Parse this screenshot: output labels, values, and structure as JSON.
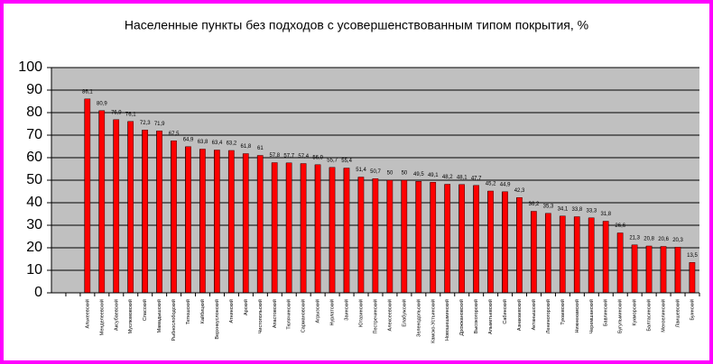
{
  "chart_data": {
    "type": "bar",
    "title": "Населенные пункты без подходов с усовершенствованным типом покрытия, %",
    "categories": [
      null,
      null,
      "Алькеевский",
      "Менделеевский",
      "Аксубаевский",
      "Муслюмовский",
      "Спасский",
      "Мамадышский",
      "Рыбнослободский",
      "Тетюшский",
      "Кайбицкий",
      "Верхнеуслонский",
      "Атнинский",
      "Арский",
      "Чистопольский",
      "Апастовский",
      "Тюлячинский",
      "Сармановский",
      "Агрызский",
      "Нурлатский",
      "Заинский",
      "Ютазинский",
      "Пестречинский",
      "Алексеевский",
      "Елабужский",
      "Зеленодольский",
      "Камско-Устьинский",
      "Новошешминский",
      "Дрожжановский",
      "Высокогорский",
      "Альметьевский",
      "Сабинский",
      "Азнакаевский",
      "Актанышский",
      "Лениногорский",
      "Тукаевский",
      "Нижнекамский",
      "Черемшанский",
      "Бавлинский",
      "Бугульминский",
      "Кукморский",
      "Балтасинский",
      "Мензелинский",
      "Лаишевский",
      "Буинский"
    ],
    "values": [
      null,
      null,
      86.1,
      80.9,
      76.9,
      76.1,
      72.3,
      71.9,
      67.5,
      64.9,
      63.8,
      63.4,
      63.2,
      61.8,
      61,
      57.8,
      57.7,
      57.4,
      56.9,
      55.7,
      55.4,
      51.4,
      50.7,
      50,
      50,
      49.5,
      49.1,
      48.2,
      48.1,
      47.7,
      45.2,
      44.9,
      42.3,
      36.2,
      35.3,
      34.1,
      33.8,
      33.3,
      31.8,
      26.6,
      21.3,
      20.8,
      20.6,
      20.3,
      13.5
    ],
    "value_labels": [
      null,
      null,
      "86,1",
      "80,9",
      "76,9",
      "76,1",
      "72,3",
      "71,9",
      "67,5",
      "64,9",
      "63,8",
      "63,4",
      "63,2",
      "61,8",
      "61",
      "57,8",
      "57,7",
      "57,4",
      "56,9",
      "55,7",
      "55,4",
      "51,4",
      "50,7",
      "50",
      "50",
      "49,5",
      "49,1",
      "48,2",
      "48,1",
      "47,7",
      "45,2",
      "44,9",
      "42,3",
      "36,2",
      "35,3",
      "34,1",
      "33,8",
      "33,3",
      "31,8",
      "26,6",
      "21,3",
      "20,8",
      "20,6",
      "20,3",
      "13,5"
    ],
    "color": "#ff0000",
    "ylim": [
      0,
      100
    ],
    "yticks": [
      0,
      10,
      20,
      30,
      40,
      50,
      60,
      70,
      80,
      90,
      100
    ],
    "grid": true
  }
}
